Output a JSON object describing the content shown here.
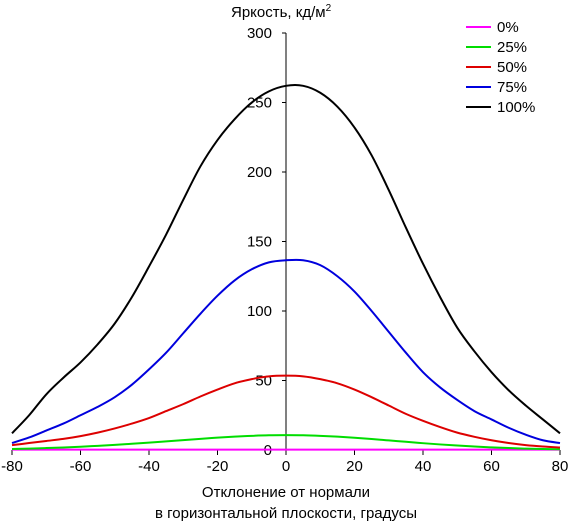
{
  "chart_data": {
    "type": "line",
    "title": "",
    "ylabel": "Яркость, кд/м",
    "ylabel_sup": "2",
    "xlabel_line1": "Отклонение от нормали",
    "xlabel_line2": "в горизонтальной плоскости, градусы",
    "xlim": [
      -80,
      80
    ],
    "ylim": [
      0,
      300
    ],
    "xticks": [
      -80,
      -60,
      -40,
      -20,
      0,
      20,
      40,
      60,
      80
    ],
    "yticks": [
      0,
      50,
      100,
      150,
      200,
      250,
      300
    ],
    "xtick_labels": [
      "-80",
      "-60",
      "-40",
      "-20",
      "0",
      "20",
      "40",
      "60",
      "80"
    ],
    "ytick_labels": [
      "0",
      "50",
      "100",
      "150",
      "200",
      "250",
      "300"
    ],
    "grid": false,
    "legend_position": "top-right",
    "x": [
      -80,
      -75,
      -70,
      -65,
      -60,
      -55,
      -50,
      -45,
      -40,
      -35,
      -30,
      -25,
      -20,
      -15,
      -10,
      -5,
      0,
      5,
      10,
      15,
      20,
      25,
      30,
      35,
      40,
      45,
      50,
      55,
      60,
      65,
      70,
      75,
      80
    ],
    "series": [
      {
        "name": "0%",
        "color": "#ff00ff",
        "values": [
          0.3,
          0.3,
          0.3,
          0.3,
          0.3,
          0.3,
          0.3,
          0.3,
          0.3,
          0.3,
          0.3,
          0.3,
          0.3,
          0.3,
          0.3,
          0.3,
          0.3,
          0.3,
          0.3,
          0.3,
          0.3,
          0.3,
          0.3,
          0.3,
          0.3,
          0.3,
          0.3,
          0.3,
          0.3,
          0.3,
          0.3,
          0.3,
          0.3
        ]
      },
      {
        "name": "25%",
        "color": "#00dd00",
        "values": [
          0.7,
          1.0,
          1.4,
          1.8,
          2.3,
          3.0,
          3.7,
          4.5,
          5.3,
          6.2,
          7.1,
          8.0,
          8.9,
          9.6,
          10.2,
          10.6,
          10.7,
          10.6,
          10.2,
          9.6,
          8.8,
          7.9,
          6.9,
          5.9,
          4.9,
          4.0,
          3.2,
          2.5,
          1.9,
          1.4,
          1.0,
          0.7,
          0.5
        ]
      },
      {
        "name": "50%",
        "color": "#dd0000",
        "values": [
          3.5,
          5,
          6.5,
          8,
          10,
          12.5,
          15.5,
          19,
          23,
          28,
          33,
          38.5,
          43.5,
          48,
          51,
          53,
          53.5,
          53,
          51,
          48,
          43.5,
          38,
          32,
          26,
          21,
          16.5,
          12.5,
          9.5,
          7,
          5,
          3.5,
          2.5,
          1.8
        ]
      },
      {
        "name": "75%",
        "color": "#0000dd",
        "values": [
          5,
          9,
          14,
          19,
          25,
          31,
          38,
          47,
          58,
          70,
          84,
          98,
          111,
          122,
          130,
          135,
          136.5,
          136.5,
          133,
          125,
          114,
          100,
          85,
          70,
          56,
          45,
          36,
          28,
          22,
          16,
          11,
          7,
          5
        ]
      },
      {
        "name": "100%",
        "color": "#000000",
        "values": [
          12,
          25,
          40,
          52,
          63,
          76,
          91,
          110,
          132,
          155,
          180,
          204,
          223,
          238,
          250,
          258,
          262,
          262,
          257,
          247,
          232,
          212,
          187,
          160,
          134,
          110,
          88,
          71,
          56,
          43,
          32,
          22,
          12
        ]
      }
    ]
  }
}
